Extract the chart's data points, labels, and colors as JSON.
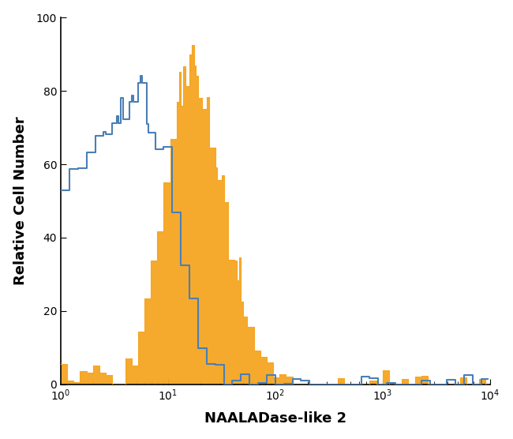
{
  "xlabel": "NAALADase-like 2",
  "ylabel": "Relative Cell Number",
  "xlim_log": [
    1,
    10000
  ],
  "ylim": [
    0,
    100
  ],
  "yticks": [
    0,
    20,
    40,
    60,
    80,
    100
  ],
  "blue_color": "#4a7fb5",
  "orange_color": "#f5a623",
  "background_color": "#ffffff",
  "n_bins": 200
}
